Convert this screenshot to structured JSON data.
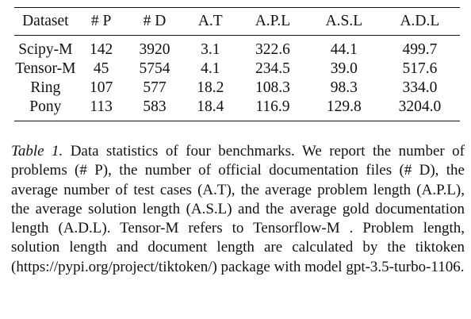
{
  "table": {
    "headers": [
      "Dataset",
      "# P",
      "# D",
      "A.T",
      "A.P.L",
      "A.S.L",
      "A.D.L"
    ],
    "rows": [
      [
        "Scipy-M",
        "142",
        "3920",
        "3.1",
        "322.6",
        "44.1",
        "499.7"
      ],
      [
        "Tensor-M",
        "45",
        "5754",
        "4.1",
        "234.5",
        "39.0",
        "517.6"
      ],
      [
        "Ring",
        "107",
        "577",
        "18.2",
        "108.3",
        "98.3",
        "334.0"
      ],
      [
        "Pony",
        "113",
        "583",
        "18.4",
        "116.9",
        "129.8",
        "3204.0"
      ]
    ]
  },
  "caption": {
    "label": "Table 1.",
    "text": "Data statistics of four benchmarks. We report the number of problems (# P), the number of official documentation files (# D), the average number of test cases (A.T), the average problem length (A.P.L), the average solution length (A.S.L) and the average gold documentation length (A.D.L). Tensor-M refers to Tensorflow-M . Problem length, solution length and document length are calculated by the tiktoken (https://pypi.org/project/tiktoken/) package with model gpt-3.5-turbo-1106."
  }
}
